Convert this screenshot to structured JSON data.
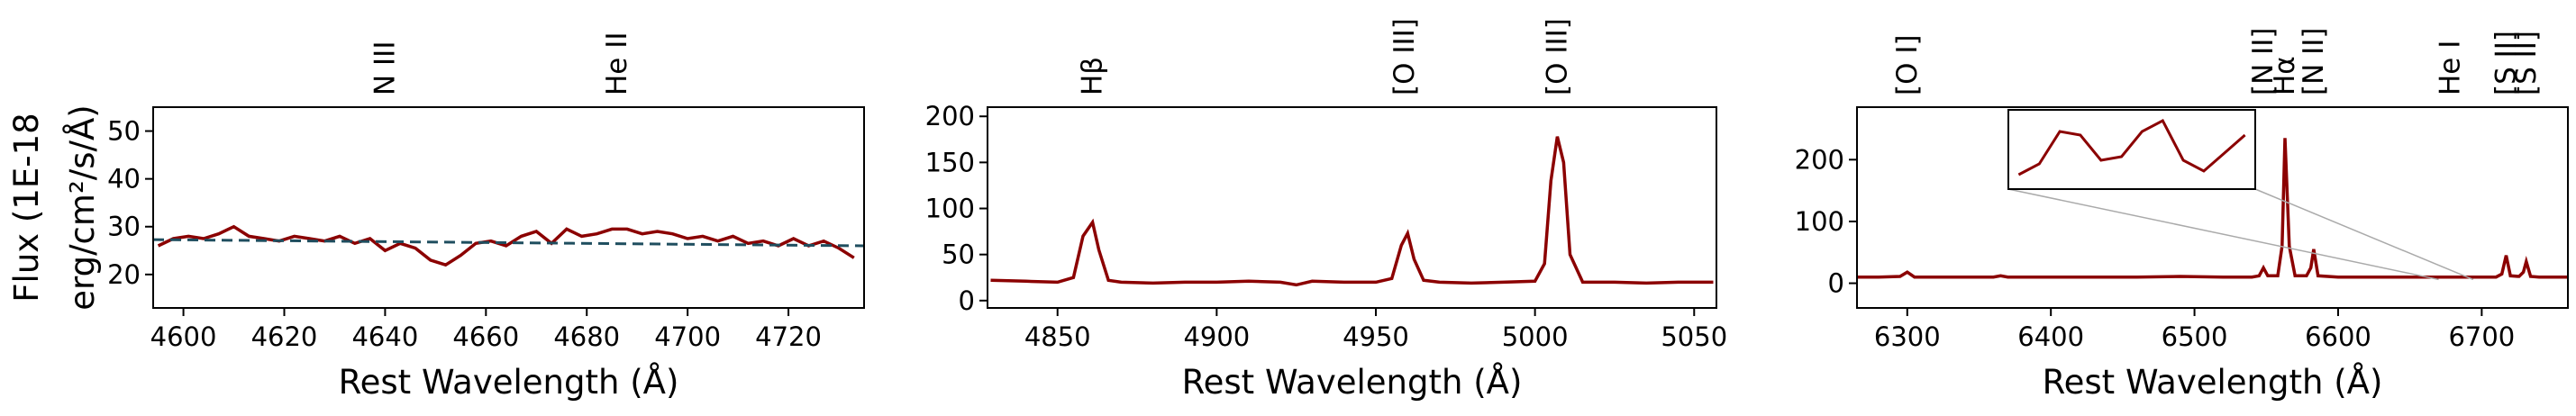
{
  "chart_data": [
    {
      "type": "line",
      "xlabel": "Rest Wavelength (Å)",
      "ylabel": [
        "Flux (1E-18",
        "erg/cm²/s/Å)"
      ],
      "xlim": [
        4594,
        4735
      ],
      "ylim": [
        13,
        55
      ],
      "xticks": [
        4600,
        4620,
        4640,
        4660,
        4680,
        4700,
        4720
      ],
      "yticks": [
        20,
        30,
        40,
        50
      ],
      "annotations": [
        {
          "label": "N III",
          "x": 4640
        },
        {
          "label": "He II",
          "x": 4686
        }
      ],
      "series": [
        {
          "color": "#8b0000",
          "linestyle": "solid",
          "x": [
            4595,
            4598,
            4601,
            4604,
            4607,
            4610,
            4613,
            4616,
            4619,
            4622,
            4625,
            4628,
            4631,
            4634,
            4637,
            4640,
            4643,
            4646,
            4649,
            4652,
            4655,
            4658,
            4661,
            4664,
            4667,
            4670,
            4673,
            4676,
            4679,
            4682,
            4685,
            4688,
            4691,
            4694,
            4697,
            4700,
            4703,
            4706,
            4709,
            4712,
            4715,
            4718,
            4721,
            4724,
            4727,
            4730,
            4733
          ],
          "values": [
            26,
            27.5,
            28,
            27.5,
            28.5,
            30,
            28,
            27.5,
            27,
            28,
            27.5,
            27,
            28,
            26.5,
            27.5,
            25,
            26.5,
            25.5,
            23,
            22,
            24,
            26.5,
            27,
            26,
            28,
            29,
            26.5,
            29.5,
            28,
            28.5,
            29.5,
            29.5,
            28.5,
            29,
            28.5,
            27.5,
            28,
            27,
            28,
            26.5,
            27,
            26,
            27.5,
            26,
            27,
            25.5,
            23.5
          ]
        },
        {
          "color": "#1f4e5f",
          "linestyle": "dashed",
          "x": [
            4594,
            4735
          ],
          "values": [
            27.3,
            26.0
          ]
        }
      ]
    },
    {
      "type": "line",
      "xlabel": "Rest Wavelength (Å)",
      "xlim": [
        4828,
        5057
      ],
      "ylim": [
        -8,
        210
      ],
      "xticks": [
        4850,
        4900,
        4950,
        5000,
        5050
      ],
      "yticks": [
        0,
        50,
        100,
        150,
        200
      ],
      "annotations": [
        {
          "label": "Hβ",
          "x": 4861
        },
        {
          "label": "[O III]",
          "x": 4959
        },
        {
          "label": "[O III]",
          "x": 5007
        }
      ],
      "series": [
        {
          "color": "#8b0000",
          "linestyle": "solid",
          "x": [
            4829,
            4840,
            4850,
            4855,
            4858,
            4861,
            4863,
            4866,
            4870,
            4880,
            4890,
            4900,
            4910,
            4920,
            4925,
            4930,
            4940,
            4950,
            4955,
            4958,
            4960,
            4962,
            4965,
            4970,
            4980,
            4990,
            5000,
            5003,
            5005,
            5007,
            5009,
            5011,
            5015,
            5025,
            5035,
            5045,
            5056
          ],
          "values": [
            22,
            21,
            20,
            25,
            70,
            85,
            55,
            22,
            20,
            19,
            20,
            20,
            21,
            20,
            17,
            21,
            20,
            20,
            24,
            60,
            73,
            45,
            22,
            20,
            19,
            20,
            21,
            40,
            130,
            178,
            150,
            50,
            20,
            20,
            19,
            20,
            20
          ]
        }
      ]
    },
    {
      "type": "line",
      "xlabel": "Rest Wavelength (Å)",
      "xlim": [
        6265,
        6760
      ],
      "ylim": [
        -40,
        285
      ],
      "xticks": [
        6300,
        6400,
        6500,
        6600,
        6700
      ],
      "yticks": [
        0,
        100,
        200
      ],
      "annotations": [
        {
          "label": "[O I]",
          "x": 6300
        },
        {
          "label": "[N II]",
          "x": 6548
        },
        {
          "label": "Hα",
          "x": 6563
        },
        {
          "label": "[N II]",
          "x": 6583
        },
        {
          "label": "He I",
          "x": 6678
        },
        {
          "label": "[S II]",
          "x": 6717
        },
        {
          "label": "[S II]",
          "x": 6731
        }
      ],
      "series": [
        {
          "color": "#8b0000",
          "linestyle": "solid",
          "x": [
            6265,
            6280,
            6295,
            6300,
            6305,
            6320,
            6340,
            6360,
            6365,
            6370,
            6400,
            6430,
            6460,
            6490,
            6520,
            6540,
            6545,
            6548,
            6551,
            6558,
            6561,
            6563,
            6566,
            6570,
            6578,
            6581,
            6583,
            6586,
            6600,
            6630,
            6660,
            6690,
            6710,
            6714,
            6717,
            6720,
            6726,
            6729,
            6731,
            6734,
            6740,
            6760
          ],
          "values": [
            10,
            10,
            11,
            18,
            10,
            10,
            10,
            10,
            12,
            10,
            10,
            10,
            10,
            11,
            10,
            10,
            12,
            25,
            12,
            12,
            60,
            235,
            60,
            12,
            12,
            25,
            55,
            12,
            10,
            10,
            10,
            10,
            10,
            15,
            45,
            12,
            11,
            18,
            35,
            11,
            10,
            10
          ]
        }
      ],
      "inset": {
        "xlim": [
          6670,
          6694
        ],
        "ylim": [
          6,
          17
        ],
        "color": "#8b0000",
        "x": [
          6671,
          6673,
          6675,
          6677,
          6679,
          6681,
          6683,
          6685,
          6687,
          6689,
          6691,
          6693
        ],
        "values": [
          8,
          9.5,
          14,
          13.5,
          10,
          10.5,
          14,
          15.5,
          10,
          8.5,
          11,
          13.5
        ]
      }
    }
  ]
}
